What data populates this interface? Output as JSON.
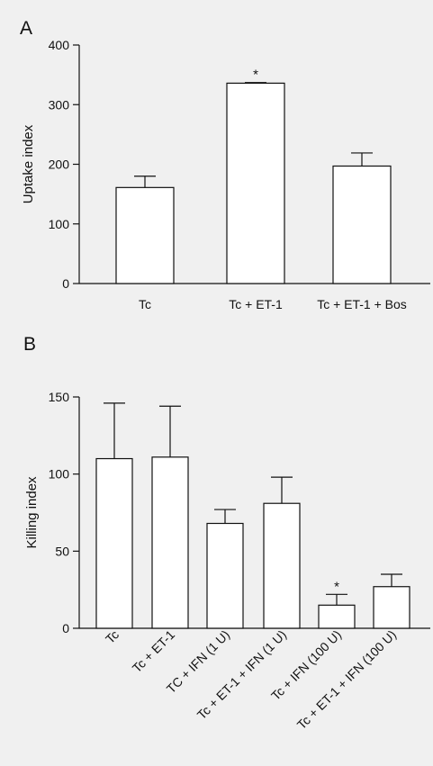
{
  "chart_data": [
    {
      "type": "bar",
      "panel_label": "A",
      "categories": [
        "Tc",
        "Tc + ET-1",
        "Tc + ET-1 + Bos"
      ],
      "values": [
        161,
        336,
        197
      ],
      "errors": [
        19,
        1,
        22
      ],
      "significance": [
        "",
        "*",
        ""
      ],
      "ylabel": "Uptake index",
      "ylim": [
        0,
        400
      ],
      "yticks": [
        0,
        100,
        200,
        300,
        400
      ],
      "tick_labels": [
        "0",
        "100",
        "200",
        "300",
        "400"
      ],
      "bar_fill": "#ffffff",
      "line_color": "#111111",
      "grid": false
    },
    {
      "type": "bar",
      "panel_label": "B",
      "categories": [
        "Tc",
        "Tc + ET-1",
        "TC + IFN (1 U)",
        "Tc + ET-1 + IFN (1 U)",
        "Tc + IFN (100 U)",
        "Tc + ET-1 + IFN (100 U)"
      ],
      "values": [
        110,
        111,
        68,
        81,
        15,
        27
      ],
      "errors": [
        36,
        33,
        9,
        17,
        7,
        8
      ],
      "significance": [
        "",
        "",
        "",
        "",
        "*",
        ""
      ],
      "ylabel": "Killing index",
      "ylim": [
        0,
        150
      ],
      "yticks": [
        0,
        50,
        100,
        150
      ],
      "tick_labels": [
        "0",
        "50",
        "100",
        "150"
      ],
      "bar_fill": "#ffffff",
      "line_color": "#111111",
      "grid": false
    }
  ]
}
